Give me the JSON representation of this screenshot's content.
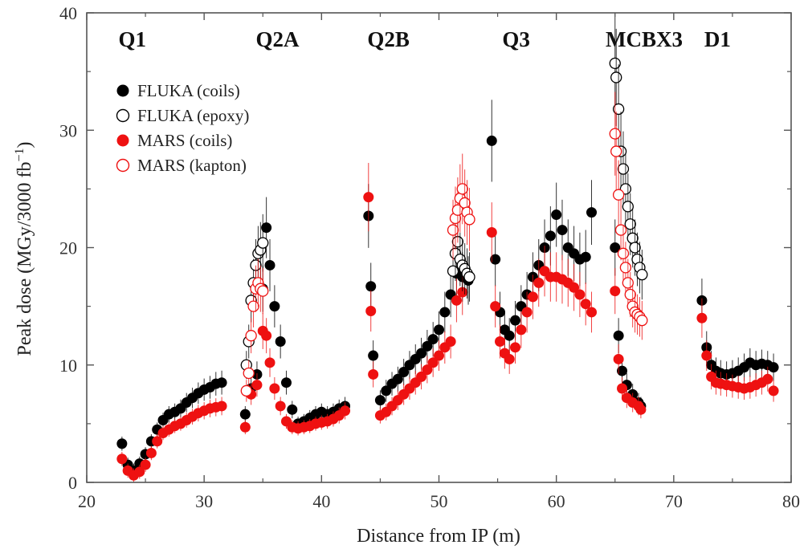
{
  "chart_data": {
    "type": "scatter",
    "title": "",
    "xlabel": "Distance from IP (m)",
    "ylabel_main": "Peak dose (MGy/3000 fb",
    "ylabel_sup": "−1",
    "ylabel_close": ")",
    "xlim": [
      20,
      80
    ],
    "ylim": [
      0,
      40
    ],
    "xticks": [
      20,
      30,
      40,
      50,
      60,
      70,
      80
    ],
    "yticks": [
      0,
      10,
      20,
      30,
      40
    ],
    "grid": false,
    "legend_position": "top-left",
    "magnet_labels": [
      {
        "text": "Q1",
        "x": 22.7
      },
      {
        "text": "Q2A",
        "x": 34.4
      },
      {
        "text": "Q2B",
        "x": 43.9
      },
      {
        "text": "Q3",
        "x": 55.4
      },
      {
        "text": "MCBX3",
        "x": 64.2
      },
      {
        "text": "D1",
        "x": 72.6
      }
    ],
    "series": [
      {
        "name": "FLUKA (coils)",
        "marker": "filled",
        "color": "#000000",
        "x": [
          23.0,
          23.5,
          24.0,
          24.5,
          25.0,
          25.5,
          26.0,
          26.5,
          27.0,
          27.5,
          28.0,
          28.5,
          29.0,
          29.5,
          30.0,
          30.5,
          31.0,
          31.5,
          33.5,
          34.0,
          34.5,
          35.0,
          35.3,
          35.6,
          36.0,
          36.5,
          37.0,
          37.5,
          38.0,
          38.5,
          39.0,
          39.5,
          40.0,
          40.5,
          41.0,
          41.5,
          42.0,
          44.0,
          44.2,
          44.4,
          45.0,
          45.5,
          46.0,
          46.5,
          47.0,
          47.5,
          48.0,
          48.5,
          49.0,
          49.5,
          50.0,
          50.5,
          51.0,
          51.5,
          52.0,
          52.5,
          54.5,
          54.8,
          55.2,
          55.6,
          56.0,
          56.5,
          57.0,
          57.5,
          58.0,
          58.5,
          59.0,
          59.5,
          60.0,
          60.5,
          61.0,
          61.5,
          62.0,
          62.5,
          63.0,
          65.0,
          65.3,
          65.6,
          66.0,
          66.5,
          67.0,
          67.2,
          72.4,
          72.8,
          73.2,
          73.6,
          74.0,
          74.5,
          75.0,
          75.5,
          76.0,
          76.5,
          77.0,
          77.5,
          78.0,
          78.5
        ],
        "y": [
          3.3,
          1.5,
          1.0,
          1.6,
          2.4,
          3.5,
          4.5,
          5.3,
          5.8,
          6.0,
          6.3,
          6.8,
          7.2,
          7.6,
          7.9,
          8.1,
          8.4,
          8.5,
          5.8,
          8.0,
          9.2,
          16.5,
          21.7,
          18.5,
          15.0,
          12.0,
          8.5,
          6.2,
          5.0,
          5.2,
          5.5,
          5.8,
          6.0,
          5.8,
          6.0,
          6.3,
          6.5,
          22.7,
          16.7,
          10.8,
          7.0,
          7.8,
          8.4,
          8.8,
          9.4,
          10.0,
          10.5,
          11.0,
          11.6,
          12.2,
          13.0,
          14.5,
          16.0,
          17.8,
          17.5,
          17.2,
          29.1,
          19.0,
          14.5,
          13.0,
          12.5,
          13.8,
          15.0,
          16.0,
          17.5,
          18.5,
          20.0,
          21.0,
          22.8,
          21.5,
          20.0,
          19.5,
          19.0,
          19.2,
          23.0,
          20.0,
          12.5,
          9.5,
          8.3,
          7.5,
          6.8,
          6.5,
          15.5,
          11.5,
          10.0,
          9.5,
          9.3,
          9.2,
          9.3,
          9.5,
          9.8,
          10.2,
          10.0,
          10.1,
          10.0,
          9.8
        ]
      },
      {
        "name": "FLUKA (epoxy)",
        "marker": "open",
        "color": "#000000",
        "x": [
          33.6,
          33.8,
          34.0,
          34.2,
          34.4,
          34.6,
          34.8,
          35.0,
          51.2,
          51.4,
          51.6,
          51.8,
          52.0,
          52.2,
          52.4,
          52.6,
          65.0,
          65.1,
          65.3,
          65.5,
          65.7,
          65.9,
          66.1,
          66.3,
          66.5,
          66.7,
          66.9,
          67.1,
          67.3
        ],
        "y": [
          10.0,
          12.0,
          15.5,
          17.0,
          18.5,
          19.5,
          19.8,
          20.4,
          18.0,
          19.5,
          20.5,
          19.0,
          18.5,
          18.2,
          17.8,
          17.5,
          35.7,
          34.5,
          31.8,
          28.2,
          26.7,
          25.0,
          23.5,
          22.0,
          20.8,
          20.0,
          19.0,
          18.3,
          17.7
        ]
      },
      {
        "name": "MARS (coils)",
        "marker": "filled",
        "color": "#ee1111",
        "x": [
          23.0,
          23.5,
          24.0,
          24.5,
          25.0,
          25.5,
          26.0,
          26.5,
          27.0,
          27.5,
          28.0,
          28.5,
          29.0,
          29.5,
          30.0,
          30.5,
          31.0,
          31.5,
          33.5,
          34.0,
          34.5,
          35.0,
          35.3,
          35.6,
          36.0,
          36.5,
          37.0,
          37.5,
          38.0,
          38.5,
          39.0,
          39.5,
          40.0,
          40.5,
          41.0,
          41.5,
          42.0,
          44.0,
          44.2,
          44.4,
          45.0,
          45.5,
          46.0,
          46.5,
          47.0,
          47.5,
          48.0,
          48.5,
          49.0,
          49.5,
          50.0,
          50.5,
          51.0,
          51.5,
          52.0,
          54.5,
          54.8,
          55.2,
          55.6,
          56.0,
          56.5,
          57.0,
          57.5,
          58.0,
          58.5,
          59.0,
          59.5,
          60.0,
          60.5,
          61.0,
          61.5,
          62.0,
          62.5,
          63.0,
          65.0,
          65.3,
          65.6,
          66.0,
          66.5,
          67.0,
          67.2,
          72.4,
          72.8,
          73.2,
          73.6,
          74.0,
          74.5,
          75.0,
          75.5,
          76.0,
          76.5,
          77.0,
          77.5,
          78.0,
          78.5
        ],
        "y": [
          2.0,
          1.0,
          0.6,
          0.9,
          1.5,
          2.5,
          3.5,
          4.2,
          4.5,
          4.8,
          5.0,
          5.3,
          5.6,
          5.9,
          6.1,
          6.3,
          6.4,
          6.5,
          4.7,
          7.5,
          8.3,
          12.9,
          12.5,
          10.2,
          8.0,
          6.5,
          5.2,
          4.7,
          4.6,
          4.7,
          4.8,
          5.0,
          5.1,
          5.2,
          5.4,
          5.7,
          6.1,
          24.3,
          14.6,
          9.2,
          5.7,
          6.0,
          6.5,
          7.0,
          7.5,
          8.0,
          8.5,
          9.0,
          9.6,
          10.2,
          10.8,
          11.5,
          12.0,
          15.5,
          16.2,
          21.3,
          15.0,
          12.0,
          11.0,
          10.5,
          11.5,
          13.0,
          14.5,
          15.8,
          17.0,
          18.0,
          17.5,
          17.5,
          17.3,
          17.0,
          16.6,
          16.0,
          15.2,
          14.5,
          16.3,
          10.5,
          8.0,
          7.2,
          6.8,
          6.5,
          6.2,
          14.0,
          10.8,
          9.0,
          8.5,
          8.4,
          8.3,
          8.2,
          8.1,
          8.0,
          8.1,
          8.3,
          8.5,
          8.8,
          7.8
        ]
      },
      {
        "name": "MARS (kapton)",
        "marker": "open",
        "color": "#ee1111",
        "x": [
          33.6,
          33.8,
          34.0,
          34.2,
          34.4,
          34.6,
          34.8,
          35.0,
          51.2,
          51.4,
          51.6,
          51.8,
          52.0,
          52.2,
          52.4,
          52.6,
          65.0,
          65.1,
          65.3,
          65.5,
          65.7,
          65.9,
          66.1,
          66.3,
          66.5,
          66.7,
          66.9,
          67.1,
          67.3
        ],
        "y": [
          7.8,
          9.3,
          12.5,
          15.0,
          16.5,
          17.0,
          16.5,
          16.3,
          21.5,
          22.5,
          23.2,
          24.2,
          25.0,
          23.8,
          23.0,
          22.4,
          29.7,
          28.2,
          24.5,
          21.5,
          19.5,
          18.3,
          17.0,
          16.0,
          15.0,
          14.5,
          14.3,
          14.1,
          13.8
        ]
      }
    ]
  }
}
